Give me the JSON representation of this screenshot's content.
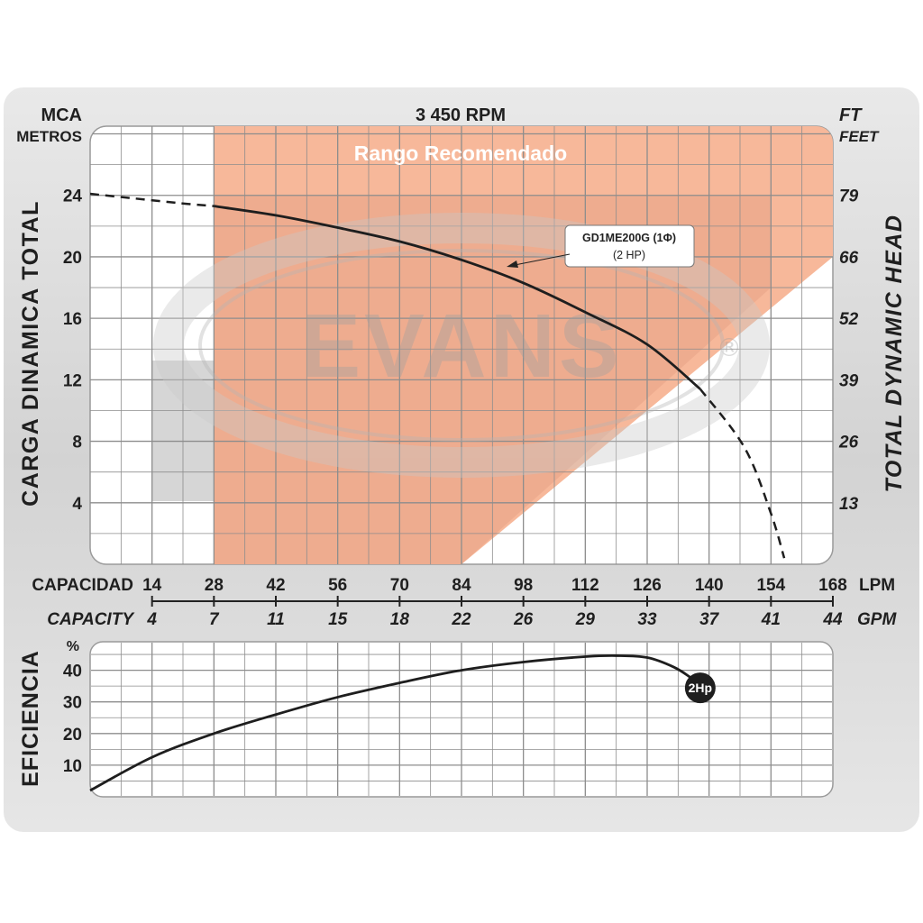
{
  "chart_data": [
    {
      "type": "line",
      "title": "3 450 RPM",
      "band_label": "Rango Recomendado",
      "watermark": "EVANS",
      "ylabel_left": "CARGA DINAMICA TOTAL",
      "ylabel_right": "TOTAL DYNAMIC HEAD",
      "yunit_left_1": "MCA",
      "yunit_left_2": "METROS",
      "yunit_right_1": "FT",
      "yunit_right_2": "FEET",
      "yticks_left": [
        4,
        8,
        12,
        16,
        20,
        24
      ],
      "yticks_right": [
        "13",
        "26",
        "39",
        "52",
        "66",
        "79"
      ],
      "ylim": [
        0,
        28.5
      ],
      "xlim": [
        0,
        168
      ],
      "x_capacity_lpm": [
        "14",
        "28",
        "42",
        "56",
        "70",
        "84",
        "98",
        "112",
        "126",
        "140",
        "154",
        "168"
      ],
      "x_capacity_gpm": [
        "4",
        "7",
        "11",
        "15",
        "18",
        "22",
        "26",
        "29",
        "33",
        "37",
        "41",
        "44"
      ],
      "xlabel_es": "CAPACIDAD",
      "xlabel_en": "CAPACITY",
      "xunit_lpm": "LPM",
      "xunit_gpm": "GPM",
      "recommended_range": {
        "x_start": 28,
        "x_top_end": 154,
        "y_top": 24,
        "corner_x": 84,
        "corner_y": 0,
        "hi_x": 168,
        "hi_y": 20
      },
      "series": [
        {
          "name": "GD1ME200G (1Φ)",
          "label_line1": "GD1ME200G (1Φ)",
          "label_line2": "(2 HP)",
          "x": [
            0,
            10,
            20,
            28,
            42,
            56,
            70,
            84,
            98,
            112,
            126,
            138,
            148,
            154,
            157
          ],
          "y": [
            24.1,
            23.8,
            23.5,
            23.3,
            22.7,
            21.9,
            21.0,
            19.8,
            18.3,
            16.4,
            14.3,
            11.4,
            7.6,
            3.3,
            0.4
          ]
        }
      ],
      "colors": {
        "band": "#f7b89a",
        "line": "#1e1e1e",
        "grid": "#8d8d8d"
      }
    },
    {
      "type": "line",
      "ylabel": "EFICIENCIA",
      "yunit": "%",
      "yticks": [
        10,
        20,
        30,
        40
      ],
      "ylim": [
        0,
        49
      ],
      "xlim": [
        0,
        168
      ],
      "series": [
        {
          "name": "2Hp",
          "label": "2Hp",
          "x": [
            0,
            14,
            28,
            42,
            56,
            70,
            84,
            98,
            112,
            119,
            126,
            132,
            136,
            138
          ],
          "y": [
            2.0,
            12.5,
            20.0,
            26.0,
            31.5,
            36.0,
            40.0,
            42.6,
            44.3,
            44.6,
            44.0,
            41.0,
            37.5,
            35.0
          ]
        }
      ]
    }
  ]
}
